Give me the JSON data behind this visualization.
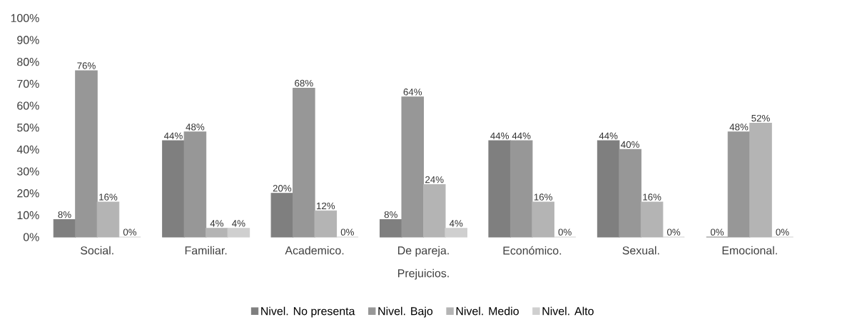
{
  "chart_data": {
    "type": "bar",
    "xlabel": "Prejuicios.",
    "categories": [
      "Social.",
      "Familiar.",
      "Academico.",
      "De pareja.",
      "Económico.",
      "Sexual.",
      "Emocional."
    ],
    "series": [
      {
        "name": "Nivel. No presenta",
        "color": "#7f7f7f",
        "values": [
          8,
          44,
          20,
          8,
          44,
          44,
          0
        ],
        "value_labels": [
          "8%",
          "44%",
          "20%",
          "8%",
          "44%",
          "44%",
          "0%"
        ]
      },
      {
        "name": "Nivel. Bajo",
        "color": "#979797",
        "values": [
          76,
          48,
          68,
          64,
          44,
          40,
          48
        ],
        "value_labels": [
          "76%",
          "48%",
          "68%",
          "64%",
          "44%",
          "40%",
          "48%"
        ]
      },
      {
        "name": "Nivel. Medio",
        "color": "#b4b4b4",
        "values": [
          16,
          4,
          12,
          24,
          16,
          16,
          52
        ],
        "value_labels": [
          "16%",
          "4%",
          "12%",
          "24%",
          "16%",
          "16%",
          "52%"
        ]
      },
      {
        "name": "Nivel. Alto",
        "color": "#cfcfcf",
        "values": [
          0,
          4,
          0,
          4,
          0,
          0,
          0
        ],
        "value_labels": [
          "0%",
          "4%",
          "0%",
          "4%",
          "0%",
          "0%",
          "0%"
        ]
      }
    ],
    "ylim": [
      0,
      100
    ],
    "yticks": [
      {
        "value": 0,
        "label": "0%"
      },
      {
        "value": 10,
        "label": "10%"
      },
      {
        "value": 20,
        "label": "20%"
      },
      {
        "value": 30,
        "label": "30%"
      },
      {
        "value": 40,
        "label": "40%"
      },
      {
        "value": 50,
        "label": "50%"
      },
      {
        "value": 60,
        "label": "60%"
      },
      {
        "value": 70,
        "label": "70%"
      },
      {
        "value": 80,
        "label": "80%"
      },
      {
        "value": 90,
        "label": "90%"
      },
      {
        "value": 100,
        "label": "100%"
      }
    ],
    "legend": "bottom"
  }
}
